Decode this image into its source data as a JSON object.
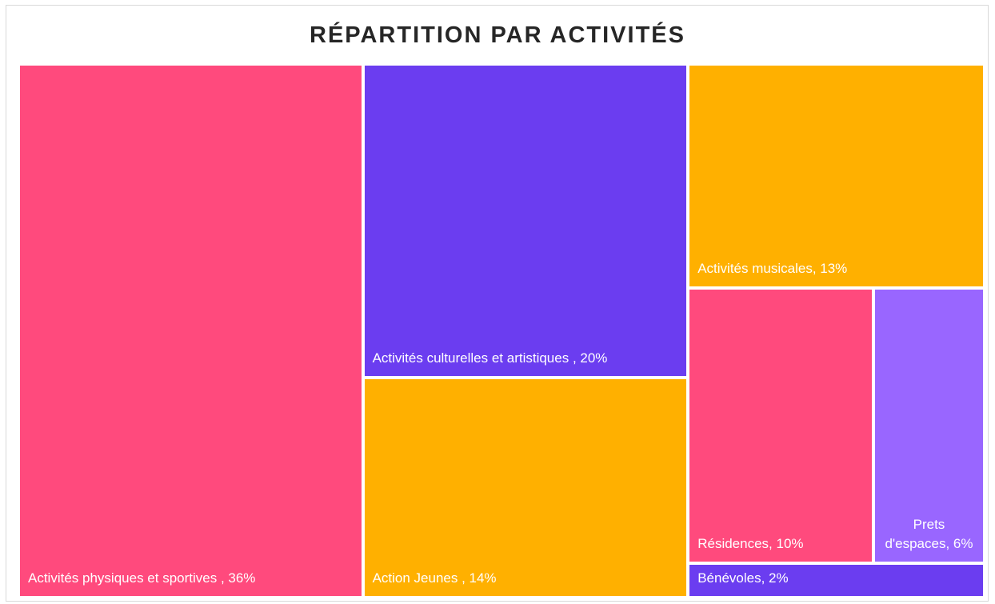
{
  "chart_data": {
    "type": "treemap",
    "title": "RÉPARTITION PAR ACTIVITÉS",
    "values": [
      36,
      20,
      14,
      13,
      10,
      6,
      2
    ],
    "value_labels": [
      "Activités physiques et sportives , 36%",
      "Activités culturelles et artistiques , 20%",
      "Action Jeunes , 14%",
      "Activités musicales, 13%",
      "Résidences, 10%",
      "Prets d'espaces, 6%",
      "Bénévoles, 2%"
    ],
    "colors": [
      "#ff4a7d",
      "#6b3df0",
      "#ffb000",
      "#ffb000",
      "#ff4a7d",
      "#9966ff",
      "#6b3df0"
    ]
  }
}
